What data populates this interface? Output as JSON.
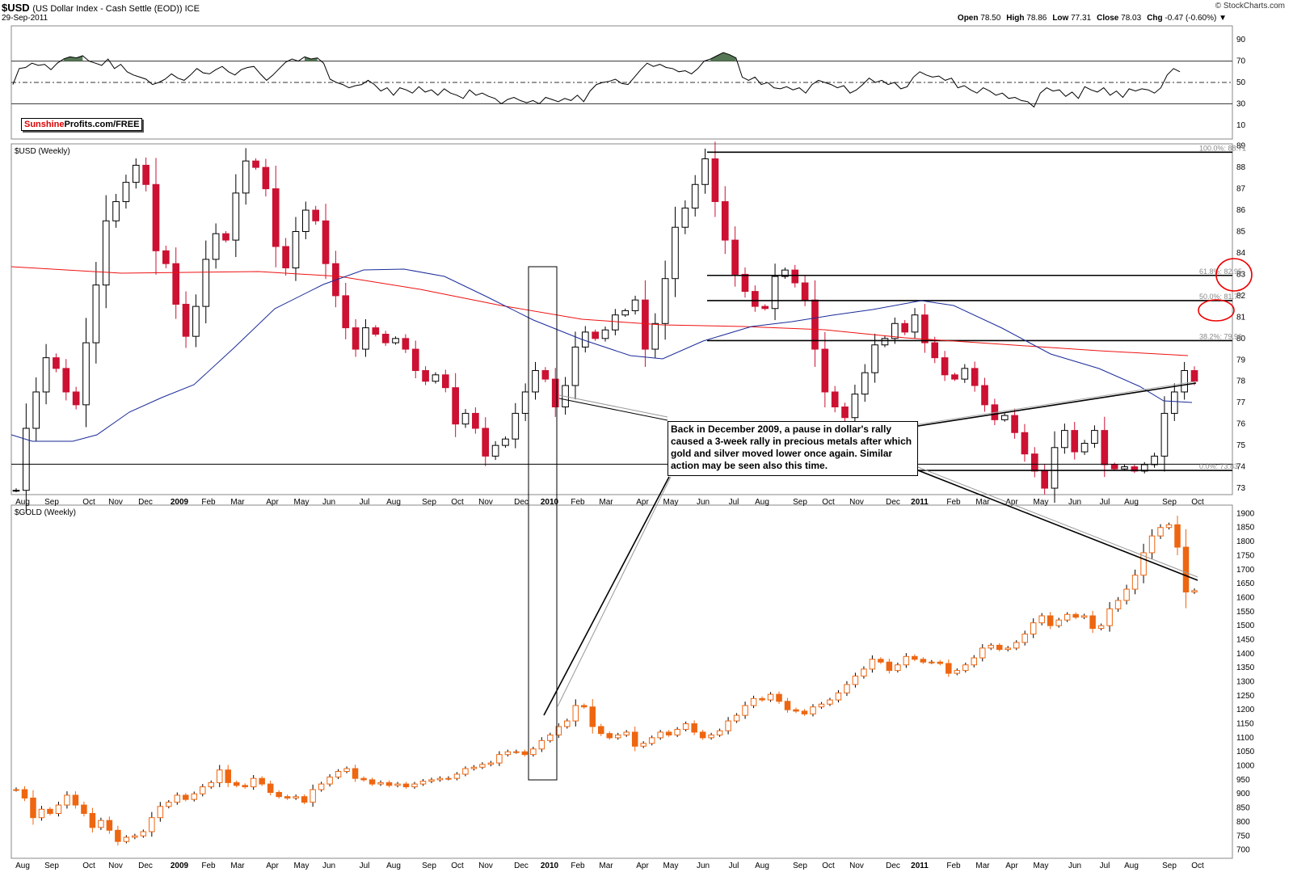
{
  "header": {
    "symbol": "$USD",
    "description": "(US Dollar Index - Cash Settle (EOD)) ICE",
    "date": "29-Sep-2011",
    "brand": "© StockCharts.com",
    "ohlc": [
      {
        "label": "Open",
        "value": "78.50"
      },
      {
        "label": "High",
        "value": "78.86"
      },
      {
        "label": "Low",
        "value": "77.31"
      },
      {
        "label": "Close",
        "value": "78.03"
      },
      {
        "label": "Chg",
        "value": "-0.47 (-0.60%) ▼"
      }
    ]
  },
  "badge": {
    "part1": "Sunshine",
    "part2": "Profits.com/FREE"
  },
  "panels": {
    "usd_label": "$USD (Weekly)",
    "gold_label": "$GOLD (Weekly)"
  },
  "annotation": "Back in December 2009, a pause in dollar's rally caused a 3-week rally in precious metals after which gold and silver moved lower once again. Similar action may be seen also this time.",
  "colors": {
    "up": "#ffffff",
    "down": "#cc1133",
    "gold": "#ee6611",
    "ma_red": "#ee1111",
    "ma_blue": "#1a2a99",
    "rsi_fill": "#557755"
  },
  "chart_data": [
    {
      "type": "line",
      "name": "RSI",
      "ylim": [
        0,
        100
      ],
      "ticks": [
        10,
        30,
        50,
        70,
        90
      ],
      "reference_lines": [
        30,
        50,
        70
      ],
      "values": [
        48,
        63,
        64,
        68,
        66,
        67,
        62,
        68,
        72,
        74,
        73,
        75,
        70,
        68,
        66,
        72,
        63,
        67,
        60,
        57,
        55,
        53,
        48,
        50,
        53,
        58,
        54,
        52,
        57,
        63,
        59,
        58,
        62,
        65,
        60,
        57,
        62,
        64,
        65,
        58,
        52,
        57,
        63,
        69,
        72,
        70,
        74,
        72,
        73,
        68,
        53,
        50,
        48,
        45,
        47,
        48,
        52,
        48,
        42,
        45,
        38,
        45,
        43,
        40,
        46,
        41,
        43,
        38,
        44,
        40,
        38,
        35,
        43,
        38,
        40,
        37,
        35,
        30,
        34,
        36,
        33,
        31,
        33,
        30,
        36,
        34,
        32,
        35,
        33,
        38,
        32,
        42,
        48,
        50,
        51,
        53,
        49,
        48,
        55,
        62,
        68,
        65,
        67,
        64,
        63,
        60,
        61,
        58,
        63,
        70,
        72,
        75,
        78,
        76,
        73,
        55,
        52,
        55,
        48,
        50,
        45,
        44,
        46,
        43,
        45,
        40,
        48,
        52,
        50,
        48,
        45,
        47,
        40,
        43,
        48,
        54,
        50,
        52,
        48,
        50,
        44,
        46,
        55,
        60,
        57,
        55,
        56,
        52,
        54,
        45,
        47,
        43,
        40,
        45,
        42,
        38,
        40,
        35,
        36,
        33,
        32,
        27,
        40,
        45,
        42,
        43,
        37,
        41,
        35,
        46,
        43,
        41,
        45,
        38,
        42,
        36,
        44,
        42,
        44,
        43,
        40,
        45,
        57,
        63,
        60
      ]
    },
    {
      "type": "candlestick",
      "name": "$USD (Weekly)",
      "ylim": [
        72.7,
        89.1
      ],
      "y_ticks": [
        73,
        74,
        75,
        76,
        77,
        78,
        79,
        80,
        81,
        82,
        83,
        84,
        85,
        86,
        87,
        88,
        89
      ],
      "x_labels": [
        "Aug",
        "Sep",
        "Oct",
        "Nov",
        "Dec",
        "2009",
        "Feb",
        "Mar",
        "Apr",
        "May",
        "Jun",
        "Jul",
        "Aug",
        "Sep",
        "Oct",
        "Nov",
        "Dec",
        "2010",
        "Feb",
        "Mar",
        "Apr",
        "May",
        "Jun",
        "Jul",
        "Aug",
        "Sep",
        "Oct",
        "Nov",
        "Dec",
        "2011",
        "Feb",
        "Mar",
        "Apr",
        "May",
        "Jun",
        "Jul",
        "Aug",
        "Sep",
        "Oct"
      ],
      "closes": [
        72.9,
        75.8,
        77.5,
        79.1,
        78.6,
        77.5,
        76.9,
        79.8,
        82.5,
        85.5,
        86.4,
        87.3,
        88.1,
        87.2,
        84.1,
        83.5,
        81.6,
        80.1,
        81.5,
        83.7,
        84.9,
        84.6,
        86.8,
        88.3,
        88.0,
        87.0,
        84.3,
        83.3,
        85.0,
        86.0,
        85.5,
        83.5,
        82.0,
        80.5,
        79.5,
        80.5,
        80.2,
        79.8,
        80.0,
        79.5,
        78.5,
        78.0,
        78.3,
        77.7,
        76.0,
        76.5,
        75.8,
        74.5,
        75.0,
        75.3,
        76.5,
        77.5,
        78.5,
        78.1,
        76.8,
        77.8,
        79.6,
        80.3,
        80.0,
        80.4,
        81.1,
        81.3,
        81.8,
        79.5,
        80.7,
        82.8,
        85.2,
        86.1,
        87.2,
        88.4,
        86.4,
        84.6,
        83.0,
        82.2,
        81.5,
        81.4,
        82.9,
        83.2,
        82.6,
        81.8,
        79.5,
        77.5,
        76.8,
        76.3,
        77.4,
        78.4,
        79.7,
        80.0,
        80.7,
        80.3,
        81.1,
        79.8,
        79.1,
        78.3,
        78.1,
        78.6,
        77.8,
        76.9,
        76.2,
        76.4,
        75.6,
        74.6,
        73.8,
        73.0,
        74.9,
        75.7,
        74.7,
        75.1,
        75.7,
        74.1,
        73.9,
        74.0,
        73.8,
        74.1,
        74.5,
        76.5,
        77.5,
        78.5,
        78.0
      ],
      "fib_levels": [
        {
          "label": "100.0%",
          "value": 88.71
        },
        {
          "label": "61.8%",
          "value": 82.95
        },
        {
          "label": "50.0%",
          "value": 81.77
        },
        {
          "label": "38.2%",
          "value": 79.9
        },
        {
          "label": "0.0%",
          "value": 73.83
        }
      ]
    },
    {
      "type": "candlestick",
      "name": "$GOLD (Weekly)",
      "ylim": [
        670,
        1930
      ],
      "y_ticks": [
        700,
        750,
        800,
        850,
        900,
        950,
        1000,
        1050,
        1100,
        1150,
        1200,
        1250,
        1300,
        1350,
        1400,
        1450,
        1500,
        1550,
        1600,
        1650,
        1700,
        1750,
        1800,
        1850,
        1900
      ],
      "x_labels": [
        "Aug",
        "Sep",
        "Oct",
        "Nov",
        "Dec",
        "2009",
        "Feb",
        "Mar",
        "Apr",
        "May",
        "Jun",
        "Jul",
        "Aug",
        "Sep",
        "Oct",
        "Nov",
        "Dec",
        "2010",
        "Feb",
        "Mar",
        "Apr",
        "May",
        "Jun",
        "Jul",
        "Aug",
        "Sep",
        "Oct",
        "Nov",
        "Dec",
        "2011",
        "Feb",
        "Mar",
        "Apr",
        "May",
        "Jun",
        "Jul",
        "Aug",
        "Sep",
        "Oct"
      ],
      "closes": [
        915,
        885,
        815,
        845,
        830,
        860,
        895,
        860,
        830,
        780,
        805,
        770,
        730,
        745,
        750,
        765,
        815,
        855,
        870,
        895,
        880,
        900,
        925,
        940,
        985,
        940,
        930,
        925,
        955,
        935,
        905,
        890,
        885,
        890,
        870,
        915,
        935,
        960,
        980,
        990,
        955,
        950,
        935,
        940,
        930,
        935,
        925,
        935,
        945,
        950,
        955,
        955,
        970,
        990,
        995,
        1005,
        1010,
        1040,
        1050,
        1050,
        1040,
        1060,
        1090,
        1110,
        1140,
        1160,
        1215,
        1210,
        1140,
        1115,
        1100,
        1110,
        1120,
        1070,
        1080,
        1100,
        1120,
        1110,
        1130,
        1150,
        1120,
        1100,
        1110,
        1125,
        1160,
        1180,
        1215,
        1240,
        1235,
        1255,
        1230,
        1200,
        1195,
        1185,
        1210,
        1220,
        1235,
        1260,
        1290,
        1320,
        1345,
        1380,
        1370,
        1340,
        1360,
        1390,
        1380,
        1370,
        1370,
        1365,
        1330,
        1340,
        1360,
        1385,
        1420,
        1430,
        1415,
        1420,
        1440,
        1470,
        1510,
        1535,
        1500,
        1520,
        1540,
        1530,
        1535,
        1490,
        1500,
        1560,
        1590,
        1630,
        1680,
        1760,
        1820,
        1850,
        1860,
        1780,
        1620,
        1625
      ]
    }
  ]
}
